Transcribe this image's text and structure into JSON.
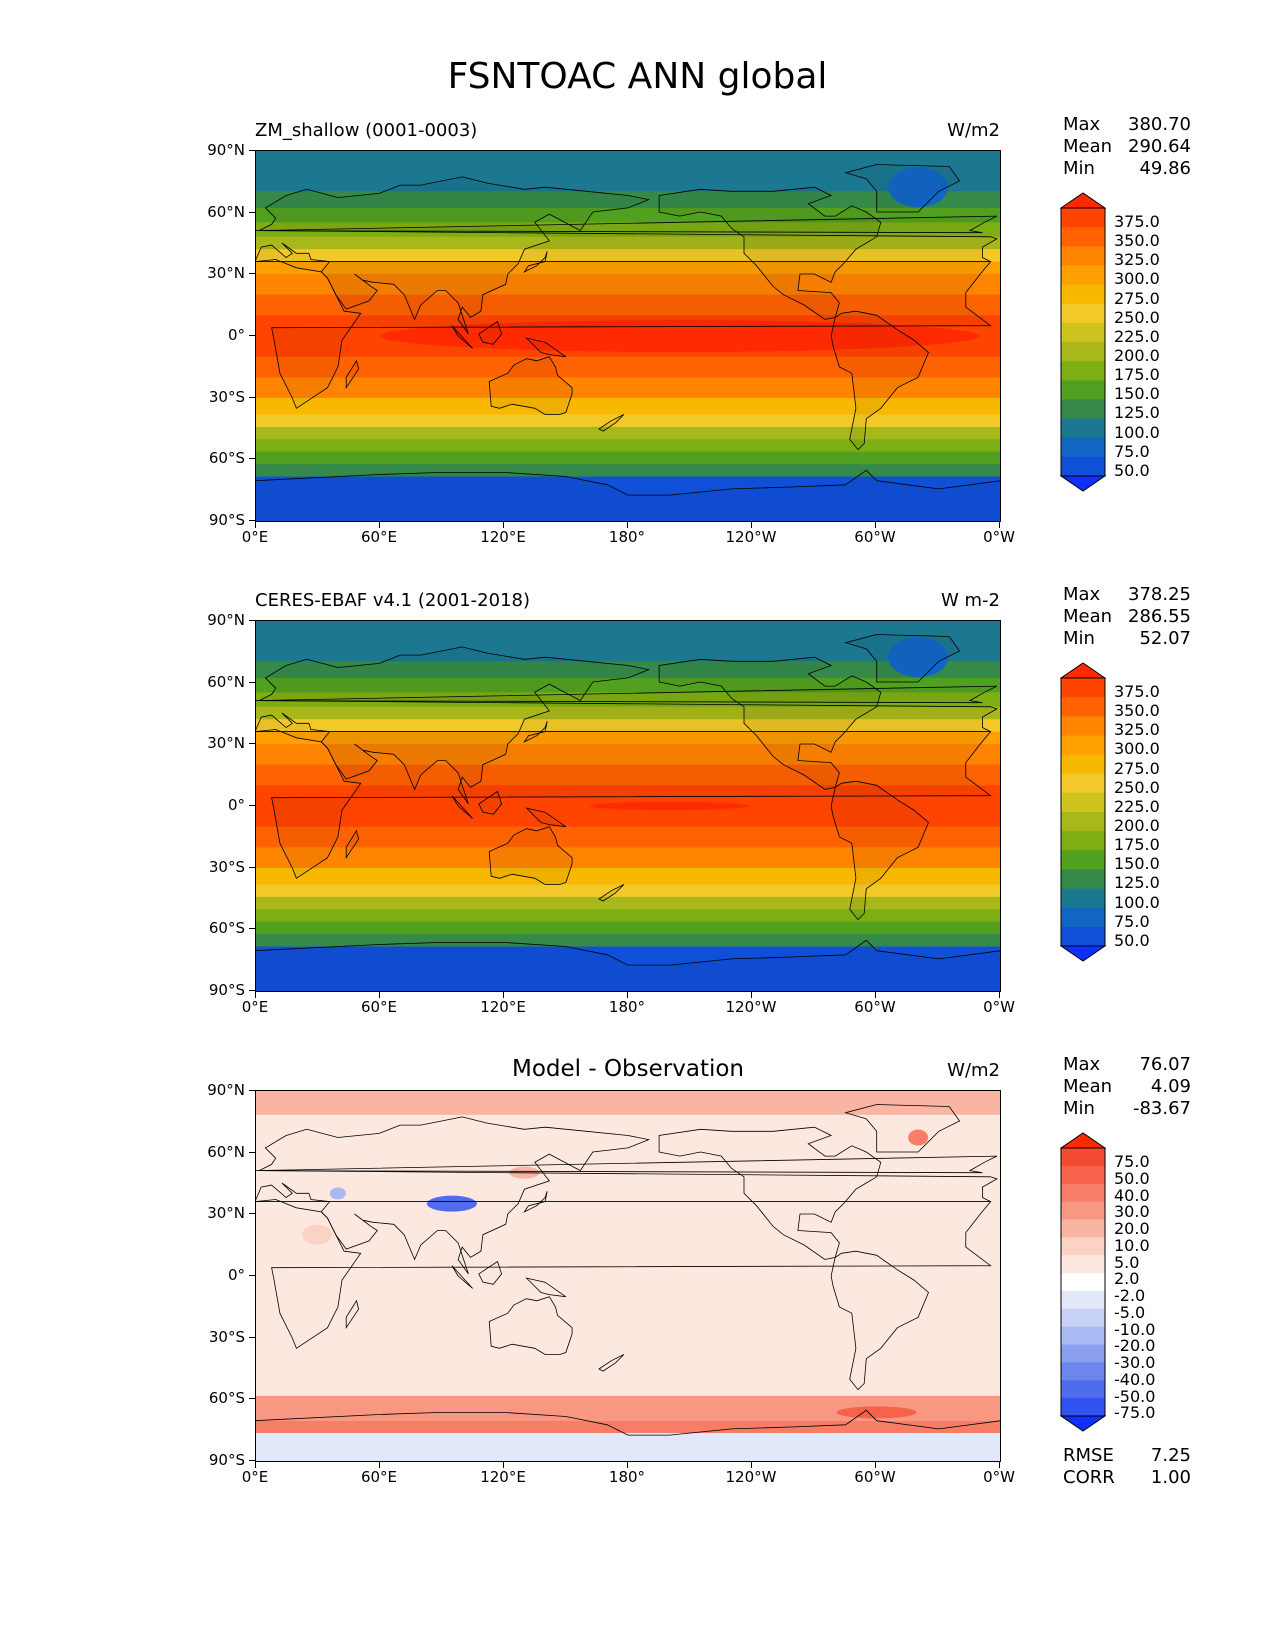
{
  "figure": {
    "title": "FSNTOAC ANN global"
  },
  "axes": {
    "lat_ticks": [
      "90°N",
      "60°N",
      "30°N",
      "0°",
      "30°S",
      "60°S",
      "90°S"
    ],
    "lon_ticks": [
      "0°E",
      "60°E",
      "120°E",
      "180°",
      "120°W",
      "60°W",
      "0°W"
    ]
  },
  "panels": [
    {
      "id": "test",
      "title_left": "ZM_shallow (0001-0003)",
      "title_center": "",
      "units": "W/m2",
      "stats": [
        {
          "label": "Max",
          "value": "380.70"
        },
        {
          "label": "Mean",
          "value": "290.64"
        },
        {
          "label": "Min",
          "value": "49.86"
        }
      ],
      "colorbar_labels": [
        "375.0",
        "350.0",
        "325.0",
        "300.0",
        "275.0",
        "250.0",
        "225.0",
        "200.0",
        "175.0",
        "150.0",
        "125.0",
        "100.0",
        "75.0",
        "50.0"
      ],
      "colorbar_colors": [
        "#ff2a00",
        "#ff4400",
        "#ff6200",
        "#ff8400",
        "#ffa000",
        "#f8b800",
        "#f2c928",
        "#cec420",
        "#a8b81a",
        "#7dae14",
        "#52a020",
        "#358a4a",
        "#1c7790",
        "#1166c4",
        "#1050d8",
        "#1030ff"
      ],
      "extra": []
    },
    {
      "id": "reference",
      "title_left": "CERES-EBAF v4.1 (2001-2018)",
      "title_center": "",
      "units": "W m-2",
      "stats": [
        {
          "label": "Max",
          "value": "378.25"
        },
        {
          "label": "Mean",
          "value": "286.55"
        },
        {
          "label": "Min",
          "value": "52.07"
        }
      ],
      "colorbar_labels": [
        "375.0",
        "350.0",
        "325.0",
        "300.0",
        "275.0",
        "250.0",
        "225.0",
        "200.0",
        "175.0",
        "150.0",
        "125.0",
        "100.0",
        "75.0",
        "50.0"
      ],
      "colorbar_colors": [
        "#ff2a00",
        "#ff4400",
        "#ff6200",
        "#ff8400",
        "#ffa000",
        "#f8b800",
        "#f2c928",
        "#cec420",
        "#a8b81a",
        "#7dae14",
        "#52a020",
        "#358a4a",
        "#1c7790",
        "#1166c4",
        "#1050d8",
        "#1030ff"
      ],
      "extra": []
    },
    {
      "id": "diff",
      "title_left": "",
      "title_center": "Model - Observation",
      "units": "W/m2",
      "stats": [
        {
          "label": "Max",
          "value": "76.07"
        },
        {
          "label": "Mean",
          "value": "4.09"
        },
        {
          "label": "Min",
          "value": "-83.67"
        }
      ],
      "colorbar_labels": [
        "75.0",
        "50.0",
        "40.0",
        "30.0",
        "20.0",
        "10.0",
        "5.0",
        "2.0",
        "-2.0",
        "-5.0",
        "-10.0",
        "-20.0",
        "-30.0",
        "-40.0",
        "-50.0",
        "-75.0"
      ],
      "colorbar_colors": [
        "#ff2a00",
        "#f44a30",
        "#f6624a",
        "#f77d66",
        "#f89882",
        "#fab4a2",
        "#fcd2c6",
        "#fde8e0",
        "#ffffff",
        "#e2e8fa",
        "#c8d2f6",
        "#a9baf2",
        "#8aa0ee",
        "#6c86ec",
        "#4e6cec",
        "#3052f0",
        "#1030ff"
      ],
      "extra": [
        {
          "label": "RMSE",
          "value": "7.25"
        },
        {
          "label": "CORR",
          "value": "1.00"
        }
      ]
    }
  ]
}
